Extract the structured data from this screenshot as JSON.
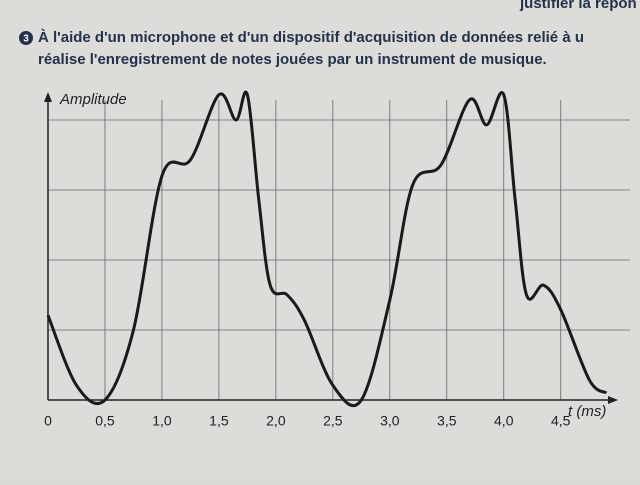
{
  "header": {
    "top_line": "justifier la répon",
    "bullet": "3",
    "lines": [
      "À l'aide d'un microphone et d'un dispositif d'acquisition de données relié à u",
      "réalise l'enregistrement de notes jouées par un instrument de musique."
    ]
  },
  "chart_data": {
    "type": "line",
    "x_label": "t (ms)",
    "y_label": "Amplitude",
    "x": [
      0,
      0.25,
      0.5,
      0.75,
      1.0,
      1.25,
      1.5,
      1.65,
      1.75,
      1.85,
      1.95,
      2.1,
      2.25,
      2.5,
      2.75,
      3.0,
      3.2,
      3.45,
      3.7,
      3.85,
      4.0,
      4.1,
      4.2,
      4.35,
      4.5,
      4.75,
      4.9
    ],
    "series": [
      {
        "color": "#1a1a1a",
        "values": [
          1.21,
          0.21,
          0,
          1.0,
          3.2,
          3.43,
          4.36,
          4.0,
          4.36,
          2.86,
          1.64,
          1.5,
          1.14,
          0.21,
          0,
          1.43,
          3.07,
          3.36,
          4.29,
          3.93,
          4.36,
          2.86,
          1.5,
          1.64,
          1.29,
          0.29,
          0.1
        ]
      }
    ],
    "xlim": [
      0,
      4.95
    ],
    "ylim": [
      0,
      4.4
    ],
    "xticks": [
      0,
      {
        "value": 0.5,
        "label": "0,5"
      },
      {
        "value": 1.0,
        "label": "1,0"
      },
      {
        "value": 1.5,
        "label": "1,5"
      },
      {
        "value": 2.0,
        "label": "2,0"
      },
      {
        "value": 2.5,
        "label": "2,5"
      },
      {
        "value": 3.0,
        "label": "3,0"
      },
      {
        "value": 3.5,
        "label": "3,5"
      },
      {
        "value": 4.0,
        "label": "4,0"
      },
      {
        "value": 4.5,
        "label": "4,5"
      }
    ],
    "ygrid": [
      1,
      2,
      3,
      4
    ],
    "grid": true
  }
}
